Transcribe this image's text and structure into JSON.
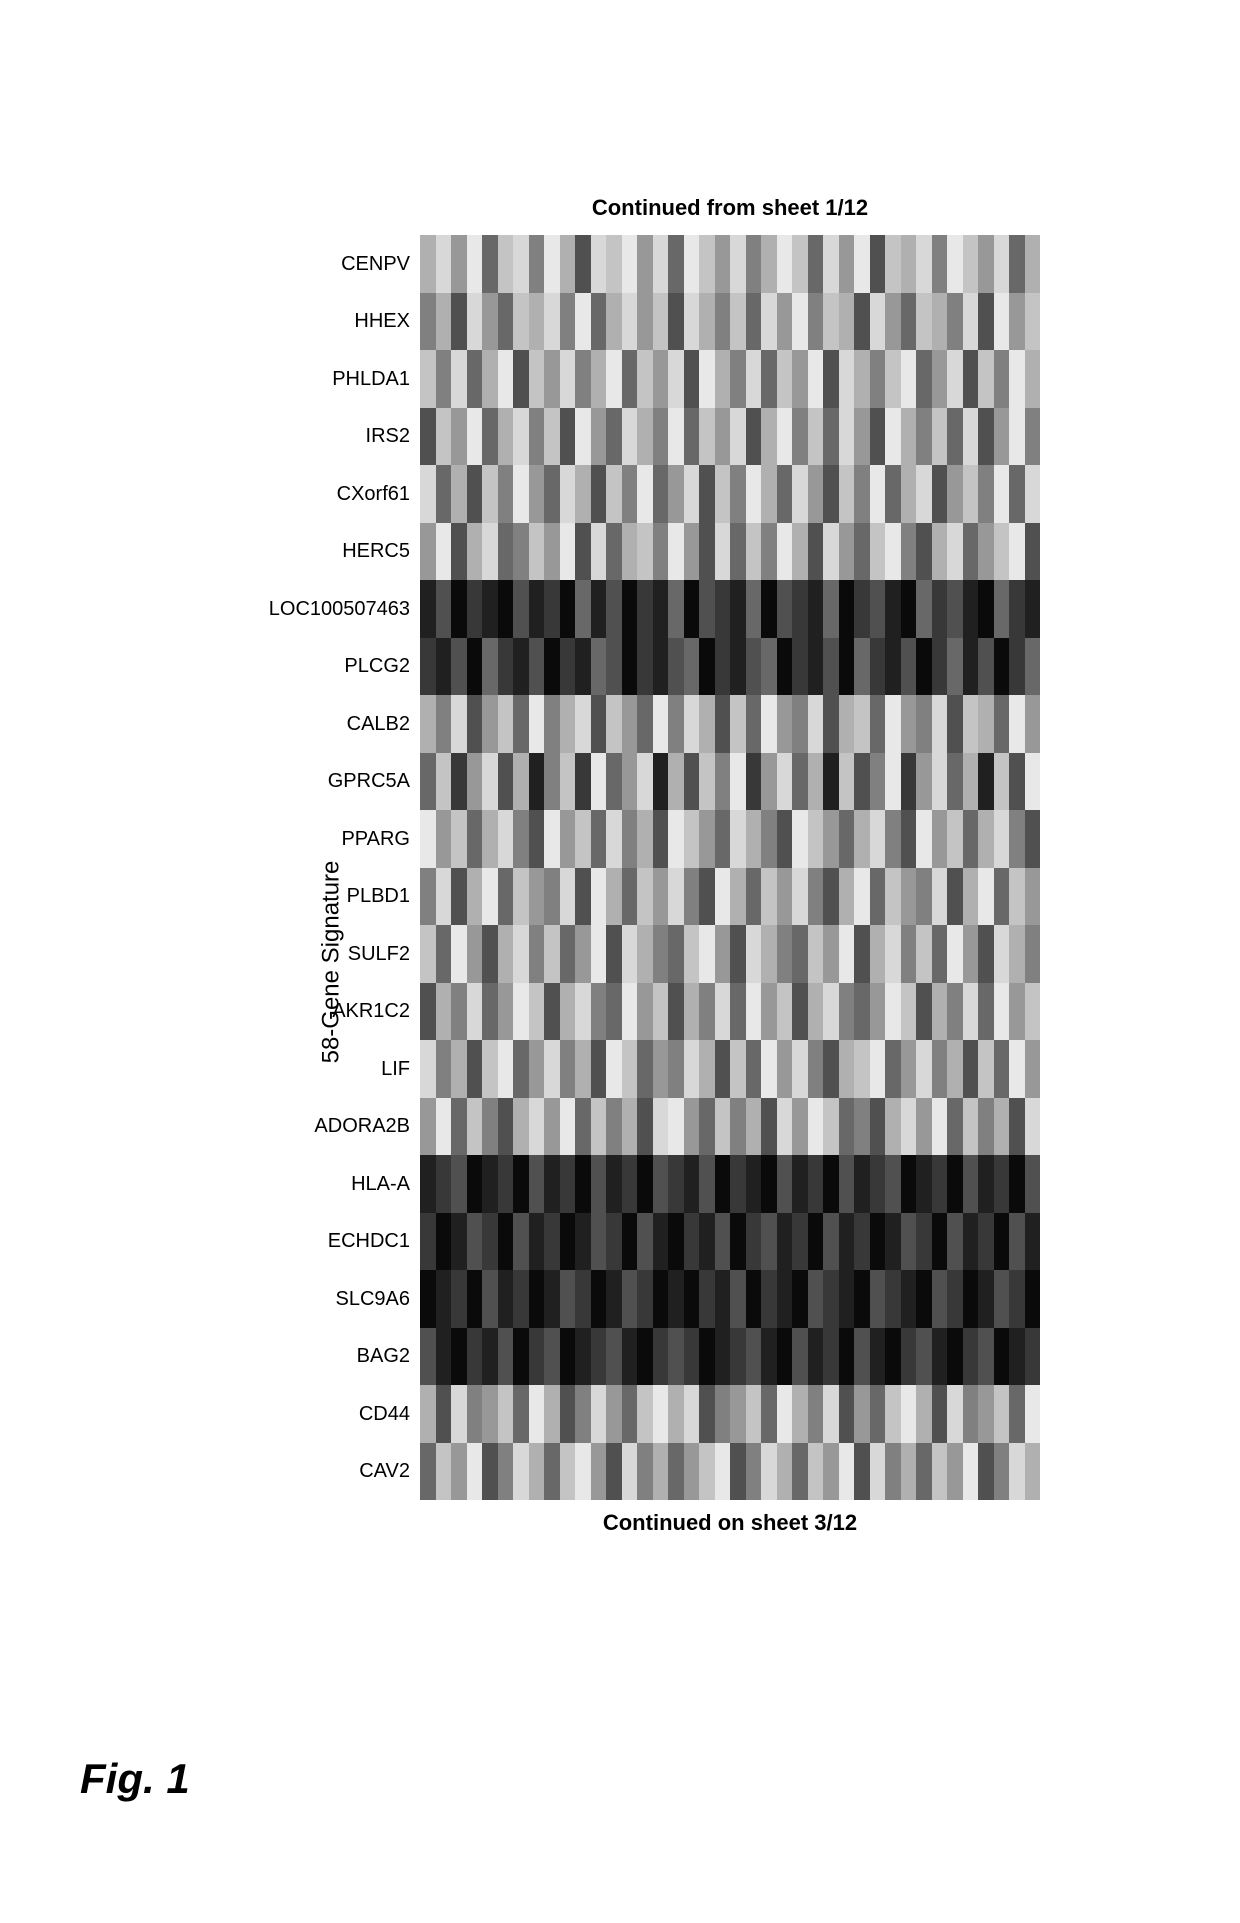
{
  "figure_label": "Fig. 1",
  "y_axis_label": "58-Gene Signature",
  "caption_top": "Continued from sheet 1/12",
  "caption_bottom": "Continued on sheet 3/12",
  "heatmap": {
    "type": "heatmap",
    "rows": 22,
    "cols": 40,
    "background_color": "#ffffff",
    "gene_labels": [
      "CENPV",
      "HHEX",
      "PHLDA1",
      "IRS2",
      "CXorf61",
      "HERC5",
      "LOC100507463",
      "PLCG2",
      "CALB2",
      "GPRC5A",
      "PPARG",
      "PLBD1",
      "SULF2",
      "AKR1C2",
      "LIF",
      "ADORA2B",
      "HLA-A",
      "ECHDC1",
      "SLC9A6",
      "BAG2",
      "CD44",
      "CAV2"
    ],
    "label_fontsize": 20,
    "grayscale_palette": [
      "#ffffff",
      "#f4f4f4",
      "#e8e8e8",
      "#d8d8d8",
      "#c4c4c4",
      "#b0b0b0",
      "#989898",
      "#808080",
      "#686868",
      "#505050",
      "#383838",
      "#202020",
      "#0a0a0a"
    ],
    "values": [
      [
        5,
        3,
        6,
        2,
        8,
        4,
        3,
        7,
        2,
        5,
        9,
        3,
        4,
        2,
        6,
        3,
        8,
        2,
        4,
        6,
        3,
        7,
        5,
        2,
        4,
        8,
        3,
        6,
        2,
        9,
        4,
        5,
        3,
        7,
        2,
        4,
        6,
        3,
        8,
        5
      ],
      [
        7,
        5,
        9,
        3,
        6,
        8,
        4,
        5,
        3,
        7,
        2,
        8,
        5,
        3,
        6,
        4,
        9,
        3,
        5,
        7,
        4,
        8,
        3,
        6,
        2,
        7,
        4,
        5,
        9,
        3,
        6,
        8,
        4,
        5,
        7,
        3,
        9,
        2,
        6,
        4
      ],
      [
        4,
        7,
        3,
        8,
        5,
        2,
        9,
        4,
        6,
        3,
        7,
        5,
        2,
        8,
        4,
        6,
        3,
        9,
        2,
        5,
        7,
        3,
        8,
        4,
        6,
        2,
        9,
        3,
        5,
        7,
        4,
        2,
        8,
        6,
        3,
        9,
        4,
        7,
        2,
        5
      ],
      [
        9,
        4,
        6,
        2,
        8,
        5,
        3,
        7,
        4,
        9,
        2,
        6,
        8,
        3,
        5,
        7,
        2,
        8,
        4,
        6,
        3,
        9,
        5,
        2,
        7,
        4,
        8,
        3,
        6,
        9,
        2,
        5,
        7,
        4,
        8,
        3,
        9,
        6,
        2,
        7
      ],
      [
        3,
        8,
        5,
        9,
        4,
        7,
        2,
        6,
        8,
        3,
        5,
        9,
        4,
        7,
        2,
        8,
        6,
        3,
        9,
        4,
        7,
        2,
        5,
        8,
        3,
        6,
        9,
        4,
        7,
        2,
        8,
        5,
        3,
        9,
        6,
        4,
        7,
        2,
        8,
        3
      ],
      [
        6,
        2,
        9,
        5,
        3,
        8,
        7,
        4,
        6,
        2,
        9,
        3,
        8,
        5,
        4,
        7,
        2,
        6,
        9,
        3,
        8,
        4,
        7,
        2,
        5,
        9,
        3,
        6,
        8,
        4,
        2,
        7,
        9,
        5,
        3,
        8,
        6,
        4,
        2,
        9
      ],
      [
        11,
        9,
        12,
        10,
        11,
        12,
        9,
        11,
        10,
        12,
        8,
        11,
        9,
        12,
        10,
        11,
        8,
        12,
        9,
        10,
        11,
        8,
        12,
        9,
        10,
        11,
        8,
        12,
        10,
        9,
        11,
        12,
        8,
        10,
        9,
        11,
        12,
        8,
        10,
        11
      ],
      [
        10,
        11,
        9,
        12,
        8,
        10,
        11,
        9,
        12,
        10,
        11,
        8,
        9,
        12,
        10,
        11,
        9,
        8,
        12,
        10,
        11,
        9,
        8,
        12,
        10,
        11,
        9,
        12,
        8,
        10,
        11,
        9,
        12,
        10,
        8,
        11,
        9,
        12,
        10,
        8
      ],
      [
        5,
        7,
        3,
        9,
        6,
        4,
        8,
        2,
        7,
        5,
        3,
        9,
        4,
        6,
        8,
        2,
        7,
        3,
        5,
        9,
        4,
        8,
        2,
        6,
        7,
        3,
        9,
        5,
        4,
        8,
        2,
        6,
        7,
        3,
        9,
        4,
        5,
        8,
        2,
        6
      ],
      [
        8,
        4,
        10,
        6,
        3,
        9,
        5,
        11,
        7,
        4,
        10,
        2,
        8,
        6,
        3,
        11,
        5,
        9,
        4,
        7,
        2,
        10,
        6,
        3,
        8,
        5,
        11,
        4,
        9,
        7,
        2,
        10,
        6,
        3,
        8,
        5,
        11,
        4,
        9,
        2
      ],
      [
        2,
        6,
        4,
        8,
        5,
        3,
        7,
        9,
        2,
        6,
        4,
        8,
        3,
        7,
        5,
        9,
        2,
        4,
        6,
        8,
        3,
        5,
        7,
        9,
        2,
        4,
        6,
        8,
        5,
        3,
        7,
        9,
        2,
        6,
        4,
        8,
        5,
        3,
        7,
        9
      ],
      [
        7,
        3,
        9,
        5,
        2,
        8,
        4,
        6,
        7,
        3,
        9,
        2,
        5,
        8,
        4,
        6,
        3,
        7,
        9,
        2,
        5,
        8,
        4,
        6,
        3,
        7,
        9,
        5,
        2,
        8,
        4,
        6,
        7,
        3,
        9,
        5,
        2,
        8,
        4,
        6
      ],
      [
        4,
        8,
        2,
        6,
        9,
        5,
        3,
        7,
        4,
        8,
        6,
        2,
        9,
        3,
        5,
        7,
        8,
        4,
        2,
        6,
        9,
        3,
        5,
        7,
        8,
        4,
        6,
        2,
        9,
        5,
        3,
        7,
        4,
        8,
        2,
        6,
        9,
        3,
        5,
        7
      ],
      [
        9,
        5,
        7,
        3,
        8,
        6,
        2,
        4,
        9,
        5,
        3,
        7,
        8,
        2,
        6,
        4,
        9,
        5,
        7,
        3,
        8,
        2,
        6,
        4,
        9,
        5,
        3,
        7,
        8,
        6,
        2,
        4,
        9,
        5,
        7,
        3,
        8,
        2,
        6,
        4
      ],
      [
        3,
        7,
        5,
        9,
        4,
        2,
        8,
        6,
        3,
        7,
        5,
        9,
        2,
        4,
        8,
        6,
        7,
        3,
        5,
        9,
        4,
        8,
        2,
        6,
        3,
        7,
        9,
        5,
        4,
        2,
        8,
        6,
        3,
        7,
        5,
        9,
        4,
        8,
        2,
        6
      ],
      [
        6,
        2,
        8,
        4,
        7,
        9,
        5,
        3,
        6,
        2,
        8,
        4,
        7,
        5,
        9,
        3,
        2,
        6,
        8,
        4,
        7,
        5,
        9,
        3,
        6,
        2,
        4,
        8,
        7,
        9,
        5,
        3,
        6,
        2,
        8,
        4,
        7,
        5,
        9,
        3
      ],
      [
        11,
        10,
        9,
        12,
        11,
        10,
        12,
        9,
        11,
        10,
        12,
        9,
        11,
        10,
        12,
        9,
        10,
        11,
        9,
        12,
        10,
        11,
        12,
        9,
        11,
        10,
        12,
        9,
        11,
        10,
        9,
        12,
        11,
        10,
        12,
        9,
        11,
        10,
        12,
        9
      ],
      [
        10,
        12,
        11,
        9,
        10,
        12,
        9,
        11,
        10,
        12,
        11,
        9,
        10,
        12,
        9,
        11,
        12,
        10,
        11,
        9,
        12,
        10,
        9,
        11,
        10,
        12,
        9,
        11,
        10,
        12,
        11,
        9,
        10,
        12,
        9,
        11,
        10,
        12,
        9,
        11
      ],
      [
        12,
        11,
        10,
        12,
        9,
        11,
        10,
        12,
        11,
        9,
        10,
        12,
        11,
        9,
        10,
        12,
        11,
        12,
        10,
        11,
        9,
        12,
        10,
        11,
        12,
        9,
        10,
        11,
        12,
        9,
        10,
        11,
        12,
        9,
        10,
        12,
        11,
        9,
        10,
        12
      ],
      [
        9,
        11,
        12,
        10,
        11,
        9,
        12,
        10,
        9,
        12,
        11,
        10,
        9,
        11,
        12,
        10,
        9,
        10,
        12,
        11,
        10,
        9,
        11,
        12,
        9,
        11,
        10,
        12,
        9,
        11,
        12,
        10,
        9,
        11,
        12,
        10,
        9,
        12,
        11,
        10
      ],
      [
        5,
        9,
        3,
        7,
        6,
        4,
        8,
        2,
        5,
        9,
        7,
        3,
        6,
        8,
        4,
        2,
        5,
        3,
        9,
        7,
        6,
        4,
        8,
        2,
        5,
        7,
        3,
        9,
        6,
        8,
        4,
        2,
        5,
        9,
        3,
        7,
        6,
        4,
        8,
        2
      ],
      [
        8,
        4,
        6,
        2,
        9,
        7,
        3,
        5,
        8,
        4,
        2,
        6,
        9,
        3,
        7,
        5,
        8,
        6,
        4,
        2,
        9,
        7,
        3,
        5,
        8,
        4,
        6,
        2,
        9,
        3,
        7,
        5,
        8,
        4,
        6,
        2,
        9,
        7,
        3,
        5
      ]
    ]
  }
}
